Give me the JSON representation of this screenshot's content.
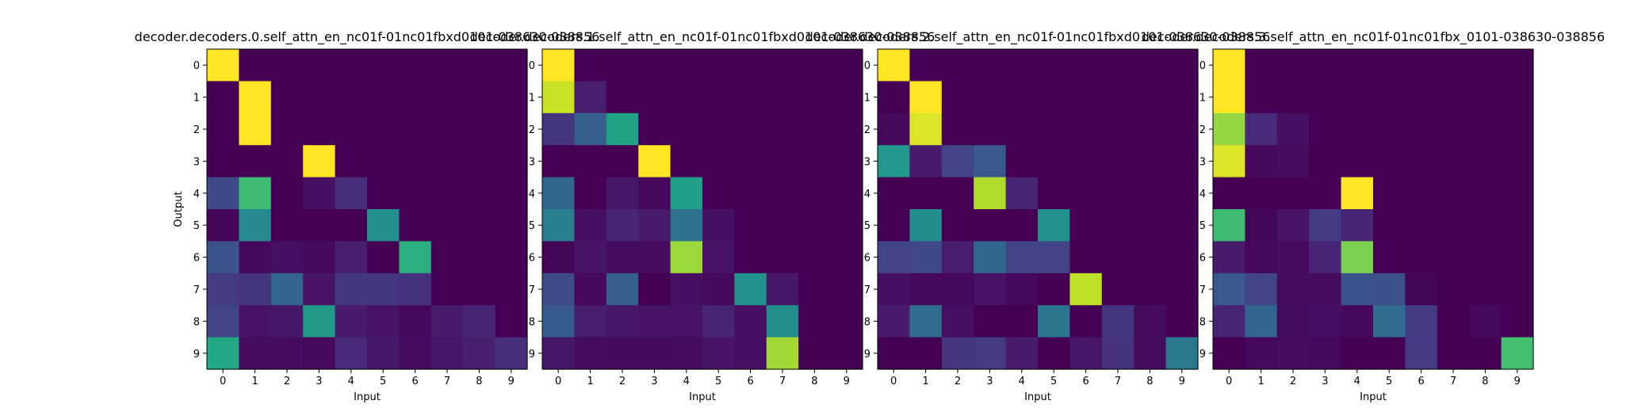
{
  "chart_data": [
    {
      "type": "heatmap",
      "title": "decoder.decoders.0.self_attn_en_nc01f-01nc01fbxd0101-038630-038856",
      "xlabel": "Input",
      "ylabel": "Output",
      "x_ticks": [
        "0",
        "1",
        "2",
        "3",
        "4",
        "5",
        "6",
        "7",
        "8",
        "9"
      ],
      "y_ticks": [
        "0",
        "1",
        "2",
        "3",
        "4",
        "5",
        "6",
        "7",
        "8",
        "9"
      ],
      "vmin": 0,
      "vmax": 1,
      "colormap": "viridis",
      "values": [
        [
          1.0,
          0,
          0,
          0,
          0,
          0,
          0,
          0,
          0,
          0
        ],
        [
          0,
          1.0,
          0,
          0,
          0,
          0,
          0,
          0,
          0,
          0
        ],
        [
          0,
          1.0,
          0,
          0,
          0,
          0,
          0,
          0,
          0,
          0
        ],
        [
          0,
          0,
          0,
          1.0,
          0,
          0,
          0,
          0,
          0,
          0
        ],
        [
          0.22,
          0.68,
          0,
          0.04,
          0.13,
          0,
          0,
          0,
          0,
          0
        ],
        [
          0.01,
          0.47,
          0,
          0,
          0,
          0.49,
          0,
          0,
          0,
          0
        ],
        [
          0.26,
          0.02,
          0.04,
          0.02,
          0.08,
          0,
          0.63,
          0,
          0,
          0
        ],
        [
          0.17,
          0.15,
          0.32,
          0.05,
          0.16,
          0.16,
          0.14,
          0,
          0,
          0
        ],
        [
          0.2,
          0.05,
          0.06,
          0.54,
          0.07,
          0.05,
          0.02,
          0.07,
          0.1,
          0
        ],
        [
          0.6,
          0.03,
          0.03,
          0.02,
          0.12,
          0.06,
          0.03,
          0.06,
          0.08,
          0.13
        ]
      ]
    },
    {
      "type": "heatmap",
      "title": "decoder.decoders.1.self_attn_en_nc01f-01nc01fbxd0101-038630-038856",
      "xlabel": "Input",
      "ylabel": "",
      "x_ticks": [
        "0",
        "1",
        "2",
        "3",
        "4",
        "5",
        "6",
        "7",
        "8",
        "9"
      ],
      "y_ticks": [
        "0",
        "1",
        "2",
        "3",
        "4",
        "5",
        "6",
        "7",
        "8",
        "9"
      ],
      "vmin": 0,
      "vmax": 1,
      "colormap": "viridis",
      "values": [
        [
          1.0,
          0,
          0,
          0,
          0,
          0,
          0,
          0,
          0,
          0
        ],
        [
          0.92,
          0.08,
          0,
          0,
          0,
          0,
          0,
          0,
          0,
          0
        ],
        [
          0.15,
          0.3,
          0.58,
          0,
          0,
          0,
          0,
          0,
          0,
          0
        ],
        [
          0,
          0,
          0,
          1.0,
          0,
          0,
          0,
          0,
          0,
          0
        ],
        [
          0.33,
          0,
          0.06,
          0.02,
          0.56,
          0,
          0,
          0,
          0,
          0
        ],
        [
          0.42,
          0.04,
          0.1,
          0.07,
          0.37,
          0.04,
          0,
          0,
          0,
          0
        ],
        [
          0.01,
          0.05,
          0.03,
          0.03,
          0.85,
          0.05,
          0,
          0,
          0,
          0
        ],
        [
          0.23,
          0.02,
          0.3,
          0,
          0.04,
          0.02,
          0.5,
          0.06,
          0,
          0
        ],
        [
          0.28,
          0.08,
          0.06,
          0.05,
          0.05,
          0.1,
          0.04,
          0.49,
          0,
          0
        ],
        [
          0.06,
          0.03,
          0.02,
          0.02,
          0.03,
          0.05,
          0.04,
          0.86,
          0,
          0
        ]
      ]
    },
    {
      "type": "heatmap",
      "title": "decoder.decoders.2.self_attn_en_nc01f-01nc01fbxd0101-038630-038856",
      "xlabel": "Input",
      "ylabel": "",
      "x_ticks": [
        "0",
        "1",
        "2",
        "3",
        "4",
        "5",
        "6",
        "7",
        "8",
        "9"
      ],
      "y_ticks": [
        "0",
        "1",
        "2",
        "3",
        "4",
        "5",
        "6",
        "7",
        "8",
        "9"
      ],
      "vmin": 0,
      "vmax": 1,
      "colormap": "viridis",
      "values": [
        [
          1.0,
          0,
          0,
          0,
          0,
          0,
          0,
          0,
          0,
          0
        ],
        [
          0,
          1.0,
          0,
          0,
          0,
          0,
          0,
          0,
          0,
          0
        ],
        [
          0.02,
          0.95,
          0,
          0,
          0,
          0,
          0,
          0,
          0,
          0
        ],
        [
          0.52,
          0.07,
          0.2,
          0.27,
          0,
          0,
          0,
          0,
          0,
          0
        ],
        [
          0,
          0,
          0,
          0.88,
          0.1,
          0,
          0,
          0,
          0,
          0
        ],
        [
          0,
          0.48,
          0,
          0,
          0,
          0.5,
          0,
          0,
          0,
          0
        ],
        [
          0.2,
          0.22,
          0.08,
          0.33,
          0.2,
          0.2,
          0,
          0,
          0,
          0
        ],
        [
          0.04,
          0.02,
          0.02,
          0.05,
          0.02,
          0,
          0.9,
          0,
          0,
          0
        ],
        [
          0.07,
          0.35,
          0.04,
          0,
          0,
          0.39,
          0,
          0.15,
          0.03,
          0
        ],
        [
          0,
          0,
          0.15,
          0.17,
          0.07,
          0,
          0.06,
          0.14,
          0.03,
          0.4
        ]
      ]
    },
    {
      "type": "heatmap",
      "title": "decoder.decoders.3.self_attn_en_nc01f-01nc01fbx_0101-038630-038856",
      "xlabel": "Input",
      "ylabel": "",
      "x_ticks": [
        "0",
        "1",
        "2",
        "3",
        "4",
        "5",
        "6",
        "7",
        "8",
        "9"
      ],
      "y_ticks": [
        "0",
        "1",
        "2",
        "3",
        "4",
        "5",
        "6",
        "7",
        "8",
        "9"
      ],
      "vmin": 0,
      "vmax": 1,
      "colormap": "viridis",
      "values": [
        [
          1.0,
          0,
          0,
          0,
          0,
          0,
          0,
          0,
          0,
          0
        ],
        [
          1.0,
          0,
          0,
          0,
          0,
          0,
          0,
          0,
          0,
          0
        ],
        [
          0.84,
          0.12,
          0.04,
          0,
          0,
          0,
          0,
          0,
          0,
          0
        ],
        [
          0.95,
          0.02,
          0.03,
          0,
          0,
          0,
          0,
          0,
          0,
          0
        ],
        [
          0,
          0,
          0,
          0,
          1.0,
          0,
          0,
          0,
          0,
          0
        ],
        [
          0.68,
          0.01,
          0.05,
          0.17,
          0.1,
          0,
          0,
          0,
          0,
          0
        ],
        [
          0.07,
          0.02,
          0.03,
          0.1,
          0.8,
          0,
          0,
          0,
          0,
          0
        ],
        [
          0.27,
          0.2,
          0.03,
          0.03,
          0.25,
          0.24,
          0.01,
          0,
          0,
          0
        ],
        [
          0.1,
          0.32,
          0.03,
          0.04,
          0.02,
          0.35,
          0.17,
          0,
          0.02,
          0
        ],
        [
          0,
          0.02,
          0.03,
          0.02,
          0,
          0,
          0.17,
          0,
          0,
          0.7
        ]
      ]
    }
  ]
}
